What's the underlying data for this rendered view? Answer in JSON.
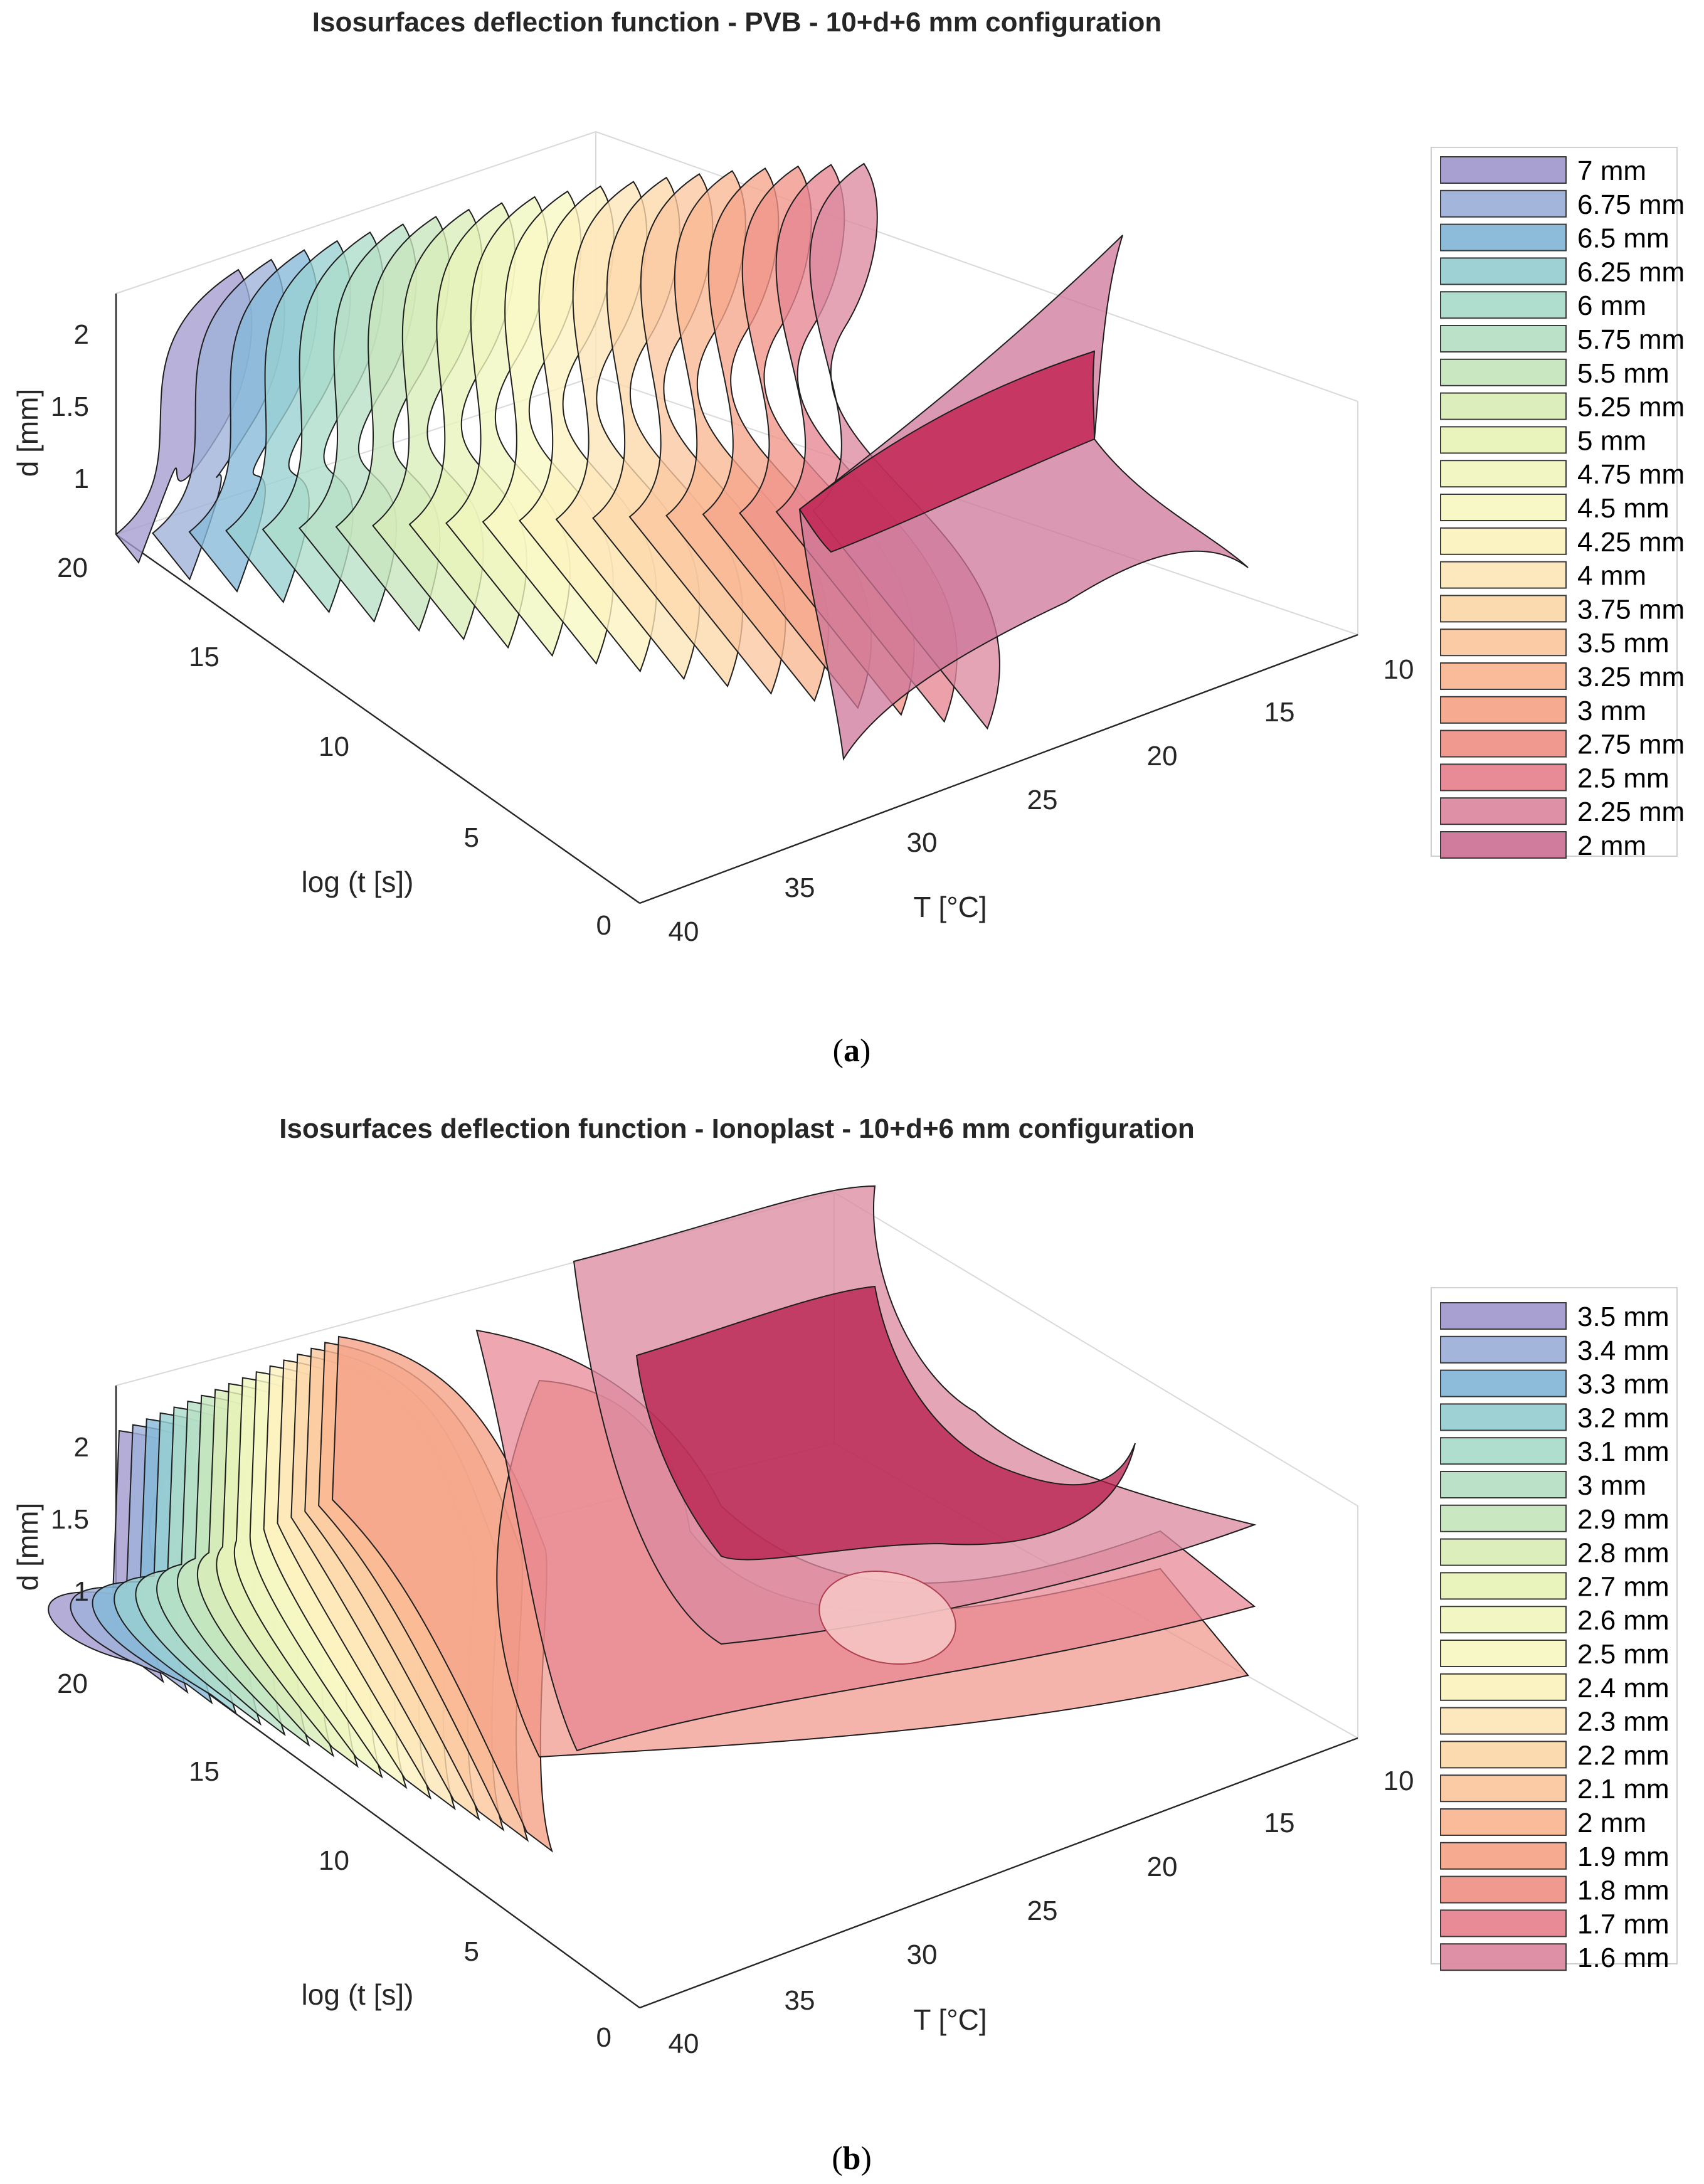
{
  "panels": [
    {
      "id": "a",
      "caption_open": "(",
      "caption_letter": "a",
      "caption_close": ")",
      "chart_data": {
        "type": "3d-isosurface",
        "title": "Isosurfaces deflection function - PVB - 10+d+6 mm configuration",
        "xlabel": "T [°C]",
        "ylabel": "log (t [s])",
        "zlabel": "d [mm]",
        "x_ticks": [
          "10",
          "15",
          "20",
          "25",
          "30",
          "35",
          "40"
        ],
        "y_ticks": [
          "0",
          "5",
          "10",
          "15",
          "20"
        ],
        "z_ticks": [
          "1",
          "1.5",
          "2"
        ],
        "xlim": [
          10,
          40
        ],
        "ylim": [
          0,
          20
        ],
        "zlim": [
          0.76,
          2.28
        ],
        "legend_position": "right",
        "isovalues_mm": [
          7,
          6.75,
          6.5,
          6.25,
          6,
          5.75,
          5.5,
          5.25,
          5,
          4.75,
          4.5,
          4.25,
          4,
          3.75,
          3.5,
          3.25,
          3,
          2.75,
          2.5,
          2.25,
          2
        ],
        "legend": [
          "7 mm",
          "6.75 mm",
          "6.5 mm",
          "6.25 mm",
          "6 mm",
          "5.75 mm",
          "5.5 mm",
          "5.25 mm",
          "5 mm",
          "4.75 mm",
          "4.5 mm",
          "4.25 mm",
          "4 mm",
          "3.75 mm",
          "3.5 mm",
          "3.25 mm",
          "3 mm",
          "2.75 mm",
          "2.5 mm",
          "2.25 mm",
          "2 mm"
        ],
        "colors": [
          "#a49bd0",
          "#9fb1d9",
          "#86b8d8",
          "#98cfd2",
          "#acdccb",
          "#b7e0c6",
          "#c6e6bd",
          "#d9edb8",
          "#e8f3b9",
          "#f0f6bf",
          "#f8f8c4",
          "#fcf2bf",
          "#fde6b8",
          "#fcd8ab",
          "#fbc8a0",
          "#f9b793",
          "#f5a58a",
          "#ef9388",
          "#e78591",
          "#dc8aa1",
          "#cd7698"
        ]
      }
    },
    {
      "id": "b",
      "caption_open": "(",
      "caption_letter": "b",
      "caption_close": ")",
      "chart_data": {
        "type": "3d-isosurface",
        "title": "Isosurfaces deflection function - Ionoplast - 10+d+6 mm configuration",
        "xlabel": "T [°C]",
        "ylabel": "log (t [s])",
        "zlabel": "d [mm]",
        "x_ticks": [
          "10",
          "15",
          "20",
          "25",
          "30",
          "35",
          "40"
        ],
        "y_ticks": [
          "0",
          "5",
          "10",
          "15",
          "20"
        ],
        "z_ticks": [
          "1",
          "1.5",
          "2"
        ],
        "xlim": [
          10,
          40
        ],
        "ylim": [
          0,
          20
        ],
        "zlim": [
          0.76,
          2.28
        ],
        "legend_position": "right",
        "isovalues_mm": [
          3.5,
          3.4,
          3.3,
          3.2,
          3.1,
          3,
          2.9,
          2.8,
          2.7,
          2.6,
          2.5,
          2.4,
          2.3,
          2.2,
          2.1,
          2,
          1.9,
          1.8,
          1.7,
          1.6
        ],
        "legend": [
          "3.5 mm",
          "3.4 mm",
          "3.3 mm",
          "3.2 mm",
          "3.1 mm",
          "3 mm",
          "2.9 mm",
          "2.8 mm",
          "2.7 mm",
          "2.6 mm",
          "2.5 mm",
          "2.4 mm",
          "2.3 mm",
          "2.2 mm",
          "2.1 mm",
          "2 mm",
          "1.9 mm",
          "1.8 mm",
          "1.7 mm",
          "1.6 mm"
        ],
        "colors": [
          "#a49bd0",
          "#9fb1d9",
          "#86b8d8",
          "#98cfd2",
          "#acdccb",
          "#b7e0c6",
          "#c6e6bd",
          "#d9edb8",
          "#e8f3b9",
          "#f0f6bf",
          "#f8f8c4",
          "#fcf2bf",
          "#fde6b8",
          "#fcd8ab",
          "#fbc8a0",
          "#f9b793",
          "#f5a58a",
          "#ef9388",
          "#e78591",
          "#dc8aa1"
        ]
      }
    }
  ]
}
